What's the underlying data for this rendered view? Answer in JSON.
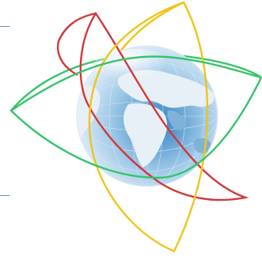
{
  "image": {
    "subject": "globe-with-interlocking-leaf-loops",
    "globe": {
      "ocean_light": "#eaf4fb",
      "ocean_mid": "#9fc9e8",
      "ocean_deep": "#2f7fc0",
      "land_light": "#e6f0f6",
      "land_shadow": "#7fb2d6",
      "grid": "#d3e3ef"
    },
    "loops": [
      {
        "name": "red-loop",
        "color": "#d2383b"
      },
      {
        "name": "yellow-loop",
        "color": "#f0c419"
      },
      {
        "name": "green-loop",
        "color": "#33c46a"
      }
    ],
    "edge_ticks": {
      "color": "#5b8ec4"
    }
  }
}
